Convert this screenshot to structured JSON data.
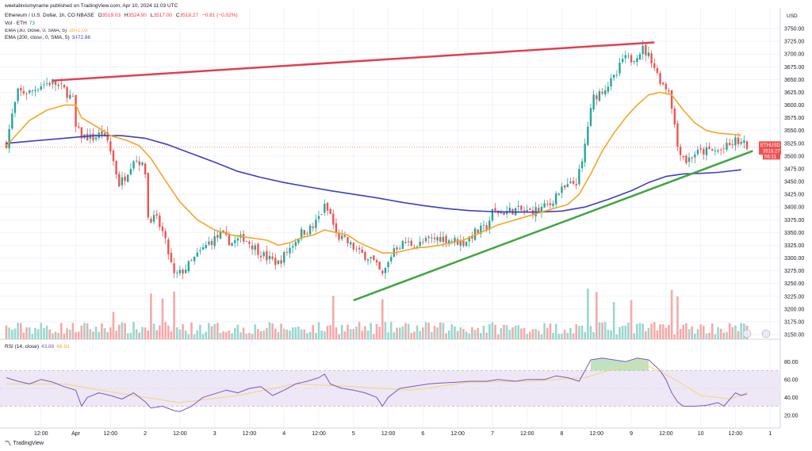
{
  "header": {
    "published": "weetabixismyname published on TradingView.com, Apr 10, 2024 11:03 UTC",
    "symbol_line": "Ethereum / U.S. Dollar, 1h, COINBASE",
    "open_label": "O",
    "open": "3519.03",
    "high_label": "H",
    "high": "3524.95",
    "low_label": "L",
    "low": "3517.00",
    "close_label": "C",
    "close": "3518.27",
    "change": "−0.81 (−0.02%)",
    "vol_label": "Vol · ETH",
    "vol_value": "73",
    "ema30_label": "EMA (30, close, 0, SMA, 5)",
    "ema30_value": "3541.03",
    "ema200_label": "EMA (200, close, 0, SMA, 5)",
    "ema200_value": "3472.86",
    "rsi_label": "RSI (14, close)",
    "rsi_value": "43.89",
    "rsi_ma_value": "46.83",
    "currency": "USD"
  },
  "price_tag": {
    "symbol": "ETHUSD",
    "price": "3518.27",
    "countdown": "56:31"
  },
  "footer": {
    "brand": "TradingView"
  },
  "colors": {
    "up": "#26a69a",
    "down": "#ef5350",
    "ema30": "#f5a623",
    "ema200": "#3f3fc4",
    "resistance": "#e04050",
    "support": "#3fa640",
    "rsi": "#7e57c2",
    "rsi_band": "#ede7f6"
  },
  "chart_data": {
    "type": "candlestick",
    "y_axis": {
      "min": 3150,
      "max": 3775,
      "step": 25,
      "ticks": [
        "3150.00",
        "3175.00",
        "3200.00",
        "3225.00",
        "3250.00",
        "3275.00",
        "3300.00",
        "3325.00",
        "3350.00",
        "3375.00",
        "3400.00",
        "3425.00",
        "3450.00",
        "3475.00",
        "3500.00",
        "3525.00",
        "3550.00",
        "3575.00",
        "3600.00",
        "3625.00",
        "3650.00",
        "3675.00",
        "3700.00",
        "3725.00",
        "3750.00"
      ]
    },
    "x_ticks": [
      {
        "i": 12,
        "label": "12:00"
      },
      {
        "i": 24,
        "label": "Apr"
      },
      {
        "i": 36,
        "label": "12:00"
      },
      {
        "i": 48,
        "label": "2"
      },
      {
        "i": 60,
        "label": "12:00"
      },
      {
        "i": 72,
        "label": "3"
      },
      {
        "i": 84,
        "label": "12:00"
      },
      {
        "i": 96,
        "label": "4"
      },
      {
        "i": 108,
        "label": "12:00"
      },
      {
        "i": 120,
        "label": "5"
      },
      {
        "i": 132,
        "label": "12:00"
      },
      {
        "i": 144,
        "label": "6"
      },
      {
        "i": 156,
        "label": "12:00"
      },
      {
        "i": 168,
        "label": "7"
      },
      {
        "i": 180,
        "label": "12:00"
      },
      {
        "i": 192,
        "label": "8"
      },
      {
        "i": 204,
        "label": "12:00"
      },
      {
        "i": 216,
        "label": "9"
      },
      {
        "i": 228,
        "label": "12:00"
      },
      {
        "i": 240,
        "label": "10"
      },
      {
        "i": 252,
        "label": "12:00"
      },
      {
        "i": 264,
        "label": "1"
      }
    ],
    "close_path": [
      [
        0,
        3525
      ],
      [
        2,
        3580
      ],
      [
        4,
        3625
      ],
      [
        8,
        3625
      ],
      [
        12,
        3640
      ],
      [
        16,
        3645
      ],
      [
        20,
        3630
      ],
      [
        23,
        3610
      ],
      [
        24,
        3555
      ],
      [
        26,
        3540
      ],
      [
        30,
        3535
      ],
      [
        33,
        3545
      ],
      [
        35,
        3530
      ],
      [
        37,
        3490
      ],
      [
        39,
        3445
      ],
      [
        41,
        3460
      ],
      [
        44,
        3495
      ],
      [
        46,
        3490
      ],
      [
        48,
        3470
      ],
      [
        49,
        3380
      ],
      [
        52,
        3375
      ],
      [
        54,
        3350
      ],
      [
        56,
        3310
      ],
      [
        58,
        3265
      ],
      [
        60,
        3270
      ],
      [
        62,
        3280
      ],
      [
        66,
        3305
      ],
      [
        70,
        3330
      ],
      [
        74,
        3345
      ],
      [
        78,
        3330
      ],
      [
        82,
        3340
      ],
      [
        86,
        3320
      ],
      [
        90,
        3300
      ],
      [
        94,
        3290
      ],
      [
        98,
        3320
      ],
      [
        102,
        3350
      ],
      [
        106,
        3360
      ],
      [
        110,
        3400
      ],
      [
        112,
        3385
      ],
      [
        114,
        3345
      ],
      [
        118,
        3330
      ],
      [
        122,
        3310
      ],
      [
        126,
        3300
      ],
      [
        130,
        3265
      ],
      [
        132,
        3290
      ],
      [
        134,
        3320
      ],
      [
        138,
        3330
      ],
      [
        142,
        3325
      ],
      [
        146,
        3335
      ],
      [
        150,
        3340
      ],
      [
        154,
        3335
      ],
      [
        158,
        3330
      ],
      [
        162,
        3350
      ],
      [
        166,
        3360
      ],
      [
        168,
        3390
      ],
      [
        172,
        3390
      ],
      [
        176,
        3395
      ],
      [
        180,
        3390
      ],
      [
        184,
        3395
      ],
      [
        188,
        3405
      ],
      [
        190,
        3425
      ],
      [
        194,
        3440
      ],
      [
        197,
        3450
      ],
      [
        199,
        3485
      ],
      [
        201,
        3560
      ],
      [
        203,
        3615
      ],
      [
        206,
        3630
      ],
      [
        209,
        3645
      ],
      [
        211,
        3660
      ],
      [
        213,
        3690
      ],
      [
        216,
        3690
      ],
      [
        218,
        3700
      ],
      [
        220,
        3710
      ],
      [
        223,
        3690
      ],
      [
        225,
        3660
      ],
      [
        227,
        3640
      ],
      [
        229,
        3630
      ],
      [
        230,
        3600
      ],
      [
        231,
        3560
      ],
      [
        232,
        3520
      ],
      [
        235,
        3490
      ],
      [
        238,
        3505
      ],
      [
        242,
        3510
      ],
      [
        246,
        3510
      ],
      [
        250,
        3520
      ],
      [
        252,
        3530
      ],
      [
        254,
        3525
      ],
      [
        256,
        3520
      ]
    ],
    "ema30_path": [
      [
        0,
        3520
      ],
      [
        4,
        3545
      ],
      [
        8,
        3570
      ],
      [
        14,
        3590
      ],
      [
        20,
        3600
      ],
      [
        24,
        3600
      ],
      [
        26,
        3575
      ],
      [
        32,
        3555
      ],
      [
        36,
        3540
      ],
      [
        42,
        3530
      ],
      [
        46,
        3520
      ],
      [
        50,
        3495
      ],
      [
        54,
        3460
      ],
      [
        60,
        3410
      ],
      [
        66,
        3375
      ],
      [
        72,
        3355
      ],
      [
        78,
        3345
      ],
      [
        84,
        3340
      ],
      [
        90,
        3335
      ],
      [
        94,
        3325
      ],
      [
        98,
        3330
      ],
      [
        102,
        3340
      ],
      [
        106,
        3345
      ],
      [
        110,
        3355
      ],
      [
        114,
        3350
      ],
      [
        118,
        3345
      ],
      [
        122,
        3330
      ],
      [
        126,
        3320
      ],
      [
        130,
        3310
      ],
      [
        134,
        3310
      ],
      [
        138,
        3315
      ],
      [
        142,
        3320
      ],
      [
        146,
        3322
      ],
      [
        150,
        3325
      ],
      [
        154,
        3330
      ],
      [
        158,
        3335
      ],
      [
        162,
        3345
      ],
      [
        166,
        3355
      ],
      [
        170,
        3365
      ],
      [
        176,
        3375
      ],
      [
        182,
        3385
      ],
      [
        188,
        3395
      ],
      [
        194,
        3405
      ],
      [
        198,
        3425
      ],
      [
        202,
        3465
      ],
      [
        206,
        3510
      ],
      [
        210,
        3545
      ],
      [
        214,
        3575
      ],
      [
        218,
        3600
      ],
      [
        222,
        3620
      ],
      [
        226,
        3625
      ],
      [
        230,
        3620
      ],
      [
        234,
        3590
      ],
      [
        238,
        3565
      ],
      [
        242,
        3550
      ],
      [
        246,
        3545
      ],
      [
        250,
        3543
      ],
      [
        254,
        3541
      ]
    ],
    "ema200_path": [
      [
        0,
        3525
      ],
      [
        10,
        3530
      ],
      [
        20,
        3535
      ],
      [
        30,
        3540
      ],
      [
        40,
        3540
      ],
      [
        48,
        3535
      ],
      [
        56,
        3522
      ],
      [
        64,
        3505
      ],
      [
        72,
        3488
      ],
      [
        80,
        3470
      ],
      [
        88,
        3458
      ],
      [
        96,
        3448
      ],
      [
        104,
        3440
      ],
      [
        112,
        3432
      ],
      [
        120,
        3425
      ],
      [
        128,
        3418
      ],
      [
        136,
        3410
      ],
      [
        144,
        3403
      ],
      [
        152,
        3397
      ],
      [
        160,
        3393
      ],
      [
        168,
        3391
      ],
      [
        176,
        3390
      ],
      [
        184,
        3390
      ],
      [
        192,
        3392
      ],
      [
        200,
        3400
      ],
      [
        208,
        3415
      ],
      [
        216,
        3432
      ],
      [
        222,
        3448
      ],
      [
        228,
        3460
      ],
      [
        234,
        3465
      ],
      [
        240,
        3466
      ],
      [
        246,
        3468
      ],
      [
        254,
        3473
      ]
    ],
    "trendlines": [
      {
        "name": "resistance",
        "x1": 16,
        "y1": 3648,
        "x2": 224,
        "y2": 3723
      },
      {
        "name": "support",
        "x1": 120,
        "y1": 3217,
        "x2": 258,
        "y2": 3510
      }
    ],
    "volume_spikes": [
      [
        37,
        0.35
      ],
      [
        50,
        0.6
      ],
      [
        54,
        0.4
      ],
      [
        58,
        0.55
      ],
      [
        113,
        0.6
      ],
      [
        130,
        0.4
      ],
      [
        201,
        0.65
      ],
      [
        204,
        0.55
      ],
      [
        210,
        0.5
      ],
      [
        216,
        0.45
      ],
      [
        230,
        0.62
      ],
      [
        232,
        0.5
      ]
    ],
    "rsi": {
      "ticks": [
        20,
        40,
        60,
        80
      ],
      "band": [
        30,
        70
      ],
      "path": [
        [
          0,
          62
        ],
        [
          4,
          58
        ],
        [
          8,
          55
        ],
        [
          12,
          60
        ],
        [
          16,
          57
        ],
        [
          20,
          52
        ],
        [
          24,
          48
        ],
        [
          26,
          30
        ],
        [
          28,
          40
        ],
        [
          32,
          45
        ],
        [
          36,
          42
        ],
        [
          40,
          38
        ],
        [
          44,
          45
        ],
        [
          48,
          35
        ],
        [
          50,
          28
        ],
        [
          54,
          30
        ],
        [
          58,
          25
        ],
        [
          60,
          24
        ],
        [
          64,
          30
        ],
        [
          68,
          40
        ],
        [
          72,
          44
        ],
        [
          76,
          48
        ],
        [
          80,
          45
        ],
        [
          84,
          50
        ],
        [
          88,
          52
        ],
        [
          92,
          42
        ],
        [
          96,
          48
        ],
        [
          100,
          55
        ],
        [
          104,
          58
        ],
        [
          108,
          62
        ],
        [
          110,
          66
        ],
        [
          112,
          55
        ],
        [
          116,
          50
        ],
        [
          120,
          48
        ],
        [
          124,
          45
        ],
        [
          128,
          40
        ],
        [
          130,
          30
        ],
        [
          132,
          40
        ],
        [
          136,
          50
        ],
        [
          140,
          52
        ],
        [
          146,
          55
        ],
        [
          150,
          56
        ],
        [
          156,
          57
        ],
        [
          160,
          58
        ],
        [
          166,
          58
        ],
        [
          170,
          60
        ],
        [
          176,
          58
        ],
        [
          180,
          60
        ],
        [
          186,
          60
        ],
        [
          190,
          64
        ],
        [
          194,
          62
        ],
        [
          198,
          58
        ],
        [
          200,
          70
        ],
        [
          202,
          82
        ],
        [
          206,
          84
        ],
        [
          210,
          82
        ],
        [
          214,
          80
        ],
        [
          218,
          84
        ],
        [
          222,
          82
        ],
        [
          226,
          70
        ],
        [
          228,
          60
        ],
        [
          230,
          45
        ],
        [
          232,
          35
        ],
        [
          234,
          30
        ],
        [
          238,
          30
        ],
        [
          242,
          31
        ],
        [
          246,
          34
        ],
        [
          248,
          30
        ],
        [
          252,
          45
        ],
        [
          254,
          42
        ],
        [
          256,
          44
        ]
      ],
      "ma_path": [
        [
          0,
          55
        ],
        [
          20,
          55
        ],
        [
          40,
          44
        ],
        [
          60,
          34
        ],
        [
          80,
          42
        ],
        [
          100,
          55
        ],
        [
          120,
          52
        ],
        [
          140,
          48
        ],
        [
          160,
          57
        ],
        [
          180,
          58
        ],
        [
          200,
          62
        ],
        [
          210,
          72
        ],
        [
          220,
          78
        ],
        [
          230,
          62
        ],
        [
          240,
          42
        ],
        [
          250,
          38
        ],
        [
          256,
          45
        ]
      ]
    }
  }
}
